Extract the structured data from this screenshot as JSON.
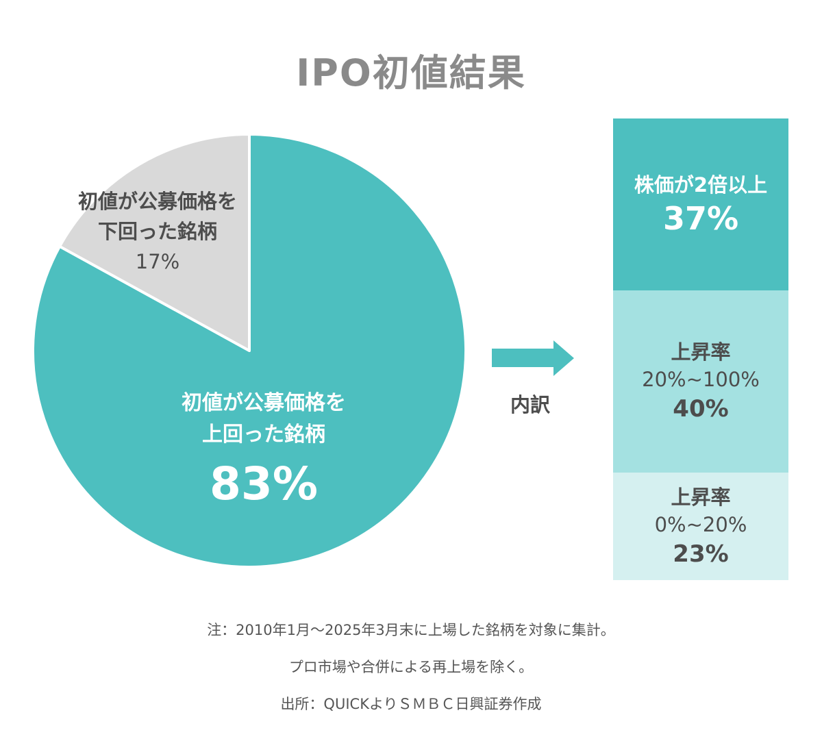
{
  "title": "IPO初値結果",
  "colors": {
    "accent": "#4dbfbf",
    "minor_slice": "#d9d9d9",
    "mid": "#a4e1e1",
    "light": "#d5f0f0",
    "title": "#8a8a8a",
    "text": "#4d4d4d"
  },
  "chart_data": [
    {
      "type": "pie",
      "slices": [
        {
          "label_lines": [
            "初値が公募価格を",
            "上回った銘柄"
          ],
          "value_label": "83%",
          "value": 83,
          "color": "#4dbfbf"
        },
        {
          "label_lines": [
            "初値が公募価格を",
            "下回った銘柄"
          ],
          "value_label": "17%",
          "value": 17,
          "color": "#d9d9d9"
        }
      ]
    },
    {
      "type": "bar",
      "stacked": true,
      "segments": [
        {
          "label": "株価が2倍以上",
          "range": "",
          "value_label": "37%",
          "value": 37,
          "color": "#4dbfbf"
        },
        {
          "label": "上昇率",
          "range": "20%~100%",
          "value_label": "40%",
          "value": 40,
          "color": "#a4e1e1"
        },
        {
          "label": "上昇率",
          "range": "0%~20%",
          "value_label": "23%",
          "value": 23,
          "color": "#d5f0f0"
        }
      ]
    }
  ],
  "breakdown_label": "内訳",
  "notes": [
    "注：2010年1月～2025年3月末に上場した銘柄を対象に集計。",
    "プロ市場や合併による再上場を除く。",
    "出所：QUICKよりＳＭＢＣ日興証券作成"
  ]
}
